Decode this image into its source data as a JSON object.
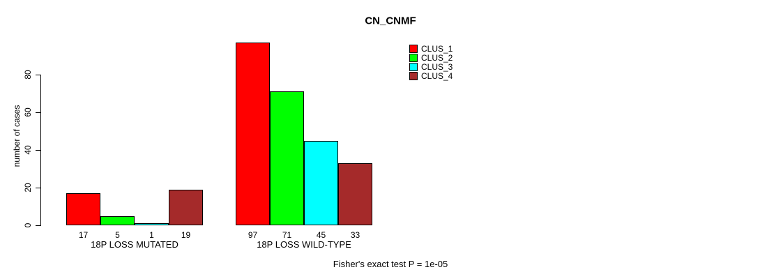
{
  "chart_data": {
    "type": "bar",
    "title": "CN_CNMF",
    "ylabel": "number of cases",
    "xlabel": "",
    "ylim": [
      0,
      80
    ],
    "yticks": [
      0,
      20,
      40,
      60,
      80
    ],
    "grid": false,
    "legend_position": "top-right",
    "categories": [
      "18P LOSS MUTATED",
      "18P LOSS WILD-TYPE"
    ],
    "series": [
      {
        "name": "CLUS_1",
        "color": "#ff0000",
        "values": [
          17,
          97
        ]
      },
      {
        "name": "CLUS_2",
        "color": "#00ff00",
        "values": [
          5,
          71
        ]
      },
      {
        "name": "CLUS_3",
        "color": "#00ffff",
        "values": [
          1,
          45
        ]
      },
      {
        "name": "CLUS_4",
        "color": "#a52a2a",
        "values": [
          19,
          33
        ]
      }
    ],
    "bar_value_labels": [
      [
        17,
        5,
        1,
        19
      ],
      [
        97,
        71,
        45,
        33
      ]
    ],
    "annotation": "Fisher's exact test P = 1e-05"
  }
}
